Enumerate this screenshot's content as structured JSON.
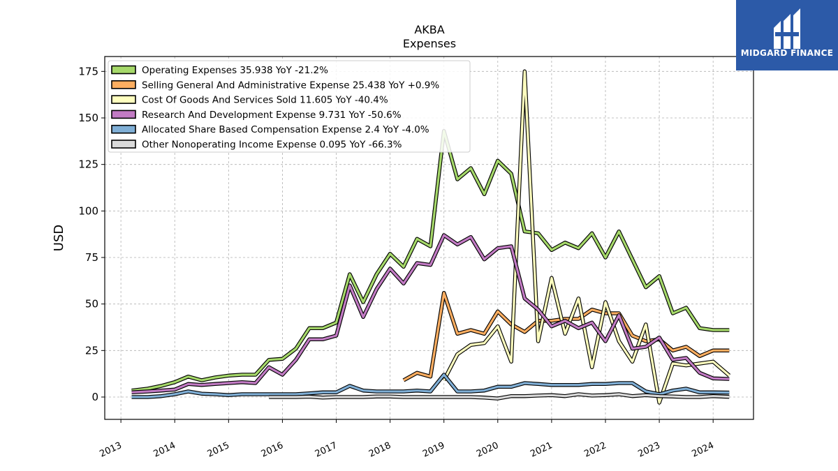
{
  "logo": {
    "text": "MIDGARD FINANCE",
    "bg_color": "#2c5aa8"
  },
  "chart_data": {
    "type": "line",
    "title": "AKBA",
    "subtitle": "Expenses",
    "ylabel": "USD",
    "xlabel": "",
    "xlim": [
      2012.7,
      2024.75
    ],
    "ylim": [
      -12,
      183
    ],
    "yticks": [
      0,
      25,
      50,
      75,
      100,
      125,
      150,
      175
    ],
    "xticks": [
      2013,
      2014,
      2015,
      2016,
      2017,
      2018,
      2019,
      2020,
      2021,
      2022,
      2023,
      2024
    ],
    "grid": true,
    "legend_position": "top-left",
    "series": [
      {
        "name": "Operating Expenses",
        "legend": "Operating Expenses  35.938 YoY -21.2%",
        "color": "#a6d96a",
        "points": [
          [
            2013.2,
            3.5
          ],
          [
            2013.5,
            4.5
          ],
          [
            2013.75,
            6
          ],
          [
            2014.0,
            8
          ],
          [
            2014.25,
            11
          ],
          [
            2014.5,
            9
          ],
          [
            2014.75,
            10.5
          ],
          [
            2015.0,
            11.5
          ],
          [
            2015.25,
            12
          ],
          [
            2015.5,
            12
          ],
          [
            2015.75,
            20
          ],
          [
            2016.0,
            20.5
          ],
          [
            2016.25,
            26
          ],
          [
            2016.5,
            37
          ],
          [
            2016.75,
            37
          ],
          [
            2017.0,
            40
          ],
          [
            2017.25,
            66
          ],
          [
            2017.5,
            51
          ],
          [
            2017.75,
            66
          ],
          [
            2018.0,
            77
          ],
          [
            2018.25,
            70
          ],
          [
            2018.5,
            85
          ],
          [
            2018.75,
            81
          ],
          [
            2019.0,
            143
          ],
          [
            2019.25,
            117
          ],
          [
            2019.5,
            123
          ],
          [
            2019.75,
            109
          ],
          [
            2020.0,
            127
          ],
          [
            2020.25,
            120
          ],
          [
            2020.5,
            89
          ],
          [
            2020.75,
            88
          ],
          [
            2021.0,
            79
          ],
          [
            2021.25,
            83
          ],
          [
            2021.5,
            80
          ],
          [
            2021.75,
            88
          ],
          [
            2022.0,
            75
          ],
          [
            2022.25,
            89
          ],
          [
            2022.5,
            74
          ],
          [
            2022.75,
            59
          ],
          [
            2023.0,
            65
          ],
          [
            2023.25,
            45
          ],
          [
            2023.5,
            48
          ],
          [
            2023.75,
            37
          ],
          [
            2024.0,
            36
          ],
          [
            2024.3,
            36
          ]
        ]
      },
      {
        "name": "Selling General And Administrative Expense",
        "legend": "Selling General And Administrative Expense  25.438 YoY +0.9%",
        "color": "#fdae61",
        "points": [
          [
            2018.25,
            9
          ],
          [
            2018.5,
            13
          ],
          [
            2018.75,
            11
          ],
          [
            2019.0,
            56
          ],
          [
            2019.25,
            34
          ],
          [
            2019.5,
            36
          ],
          [
            2019.75,
            34
          ],
          [
            2020.0,
            46
          ],
          [
            2020.25,
            39
          ],
          [
            2020.5,
            35
          ],
          [
            2020.75,
            41
          ],
          [
            2021.0,
            41
          ],
          [
            2021.25,
            42
          ],
          [
            2021.5,
            42
          ],
          [
            2021.75,
            47
          ],
          [
            2022.0,
            45
          ],
          [
            2022.25,
            45
          ],
          [
            2022.5,
            33
          ],
          [
            2022.75,
            30
          ],
          [
            2023.0,
            31
          ],
          [
            2023.25,
            25
          ],
          [
            2023.5,
            27
          ],
          [
            2023.75,
            22
          ],
          [
            2024.0,
            25
          ],
          [
            2024.3,
            25
          ]
        ]
      },
      {
        "name": "Cost Of Goods And Services Sold",
        "legend": "Cost Of Goods And Services Sold  11.605 YoY -40.4%",
        "color": "#ffffbf",
        "points": [
          [
            2019.0,
            9
          ],
          [
            2019.25,
            23
          ],
          [
            2019.5,
            28
          ],
          [
            2019.75,
            29
          ],
          [
            2020.0,
            38
          ],
          [
            2020.25,
            19
          ],
          [
            2020.5,
            175
          ],
          [
            2020.75,
            30
          ],
          [
            2021.0,
            64
          ],
          [
            2021.25,
            34
          ],
          [
            2021.5,
            53
          ],
          [
            2021.75,
            16
          ],
          [
            2022.0,
            51
          ],
          [
            2022.25,
            30
          ],
          [
            2022.5,
            19
          ],
          [
            2022.75,
            39
          ],
          [
            2023.0,
            -3
          ],
          [
            2023.25,
            18
          ],
          [
            2023.5,
            17
          ],
          [
            2023.75,
            18
          ],
          [
            2024.0,
            19
          ],
          [
            2024.3,
            11.6
          ]
        ]
      },
      {
        "name": "Research And Development Expense",
        "legend": "Research And Development Expense  9.731 YoY -50.6%",
        "color": "#c27bc4",
        "points": [
          [
            2013.2,
            2.5
          ],
          [
            2013.5,
            3
          ],
          [
            2013.75,
            3.5
          ],
          [
            2014.0,
            4
          ],
          [
            2014.25,
            7
          ],
          [
            2014.5,
            6.5
          ],
          [
            2014.75,
            7
          ],
          [
            2015.0,
            7.5
          ],
          [
            2015.25,
            8
          ],
          [
            2015.5,
            7.5
          ],
          [
            2015.75,
            16
          ],
          [
            2016.0,
            12
          ],
          [
            2016.25,
            20
          ],
          [
            2016.5,
            31
          ],
          [
            2016.75,
            31
          ],
          [
            2017.0,
            33
          ],
          [
            2017.25,
            60
          ],
          [
            2017.5,
            43
          ],
          [
            2017.75,
            58
          ],
          [
            2018.0,
            69
          ],
          [
            2018.25,
            61
          ],
          [
            2018.5,
            72
          ],
          [
            2018.75,
            71
          ],
          [
            2019.0,
            87
          ],
          [
            2019.25,
            82
          ],
          [
            2019.5,
            86
          ],
          [
            2019.75,
            74
          ],
          [
            2020.0,
            80
          ],
          [
            2020.25,
            81
          ],
          [
            2020.5,
            53
          ],
          [
            2020.75,
            47
          ],
          [
            2021.0,
            38
          ],
          [
            2021.25,
            41
          ],
          [
            2021.5,
            37
          ],
          [
            2021.75,
            40
          ],
          [
            2022.0,
            30
          ],
          [
            2022.25,
            44
          ],
          [
            2022.5,
            26
          ],
          [
            2022.75,
            27
          ],
          [
            2023.0,
            32
          ],
          [
            2023.25,
            20
          ],
          [
            2023.5,
            21
          ],
          [
            2023.75,
            13
          ],
          [
            2024.0,
            10
          ],
          [
            2024.3,
            9.7
          ]
        ]
      },
      {
        "name": "Allocated Share Based Compensation Expense",
        "legend": "Allocated Share Based Compensation Expense  2.4 YoY -4.0%",
        "color": "#80afd6",
        "points": [
          [
            2013.2,
            0
          ],
          [
            2013.5,
            0
          ],
          [
            2013.75,
            0.5
          ],
          [
            2014.0,
            1.5
          ],
          [
            2014.25,
            3
          ],
          [
            2014.5,
            1.8
          ],
          [
            2014.75,
            1.5
          ],
          [
            2015.0,
            1
          ],
          [
            2015.25,
            1.5
          ],
          [
            2015.5,
            1.5
          ],
          [
            2015.75,
            1.5
          ],
          [
            2016.0,
            1.5
          ],
          [
            2016.25,
            1.5
          ],
          [
            2016.5,
            2
          ],
          [
            2016.75,
            2.5
          ],
          [
            2017.0,
            2.5
          ],
          [
            2017.25,
            6
          ],
          [
            2017.5,
            3.5
          ],
          [
            2017.75,
            3
          ],
          [
            2018.0,
            3
          ],
          [
            2018.25,
            3
          ],
          [
            2018.5,
            3.5
          ],
          [
            2018.75,
            3
          ],
          [
            2019.0,
            12
          ],
          [
            2019.25,
            3
          ],
          [
            2019.5,
            3
          ],
          [
            2019.75,
            3.5
          ],
          [
            2020.0,
            5.5
          ],
          [
            2020.25,
            5.5
          ],
          [
            2020.5,
            7.5
          ],
          [
            2020.75,
            7
          ],
          [
            2021.0,
            6.5
          ],
          [
            2021.25,
            6.5
          ],
          [
            2021.5,
            6.5
          ],
          [
            2021.75,
            7
          ],
          [
            2022.0,
            7
          ],
          [
            2022.25,
            7.5
          ],
          [
            2022.5,
            7.5
          ],
          [
            2022.75,
            3
          ],
          [
            2023.0,
            1.5
          ],
          [
            2023.25,
            3.5
          ],
          [
            2023.5,
            4.5
          ],
          [
            2023.75,
            2.5
          ],
          [
            2024.0,
            2.5
          ],
          [
            2024.3,
            2.4
          ]
        ]
      },
      {
        "name": "Other Nonoperating Income Expense",
        "legend": "Other Nonoperating Income Expense  0.095 YoY -66.3%",
        "color": "#d9d9d9",
        "points": [
          [
            2015.75,
            0
          ],
          [
            2016.0,
            0
          ],
          [
            2016.25,
            0
          ],
          [
            2016.5,
            0.2
          ],
          [
            2016.75,
            -0.3
          ],
          [
            2017.0,
            0
          ],
          [
            2017.25,
            0
          ],
          [
            2017.5,
            0
          ],
          [
            2017.75,
            0.3
          ],
          [
            2018.0,
            0.3
          ],
          [
            2018.25,
            0
          ],
          [
            2018.5,
            0
          ],
          [
            2018.75,
            0
          ],
          [
            2019.0,
            0
          ],
          [
            2019.25,
            0
          ],
          [
            2019.5,
            0
          ],
          [
            2019.75,
            -0.3
          ],
          [
            2020.0,
            -0.8
          ],
          [
            2020.25,
            0.5
          ],
          [
            2020.5,
            0.5
          ],
          [
            2020.75,
            0.8
          ],
          [
            2021.0,
            1
          ],
          [
            2021.25,
            0.5
          ],
          [
            2021.5,
            1.5
          ],
          [
            2021.75,
            0.8
          ],
          [
            2022.0,
            1
          ],
          [
            2022.25,
            1.5
          ],
          [
            2022.5,
            0.5
          ],
          [
            2022.75,
            1
          ],
          [
            2023.0,
            0.5
          ],
          [
            2023.25,
            0.3
          ],
          [
            2023.5,
            0
          ],
          [
            2023.75,
            0
          ],
          [
            2024.0,
            0.5
          ],
          [
            2024.3,
            0.1
          ]
        ]
      }
    ]
  }
}
